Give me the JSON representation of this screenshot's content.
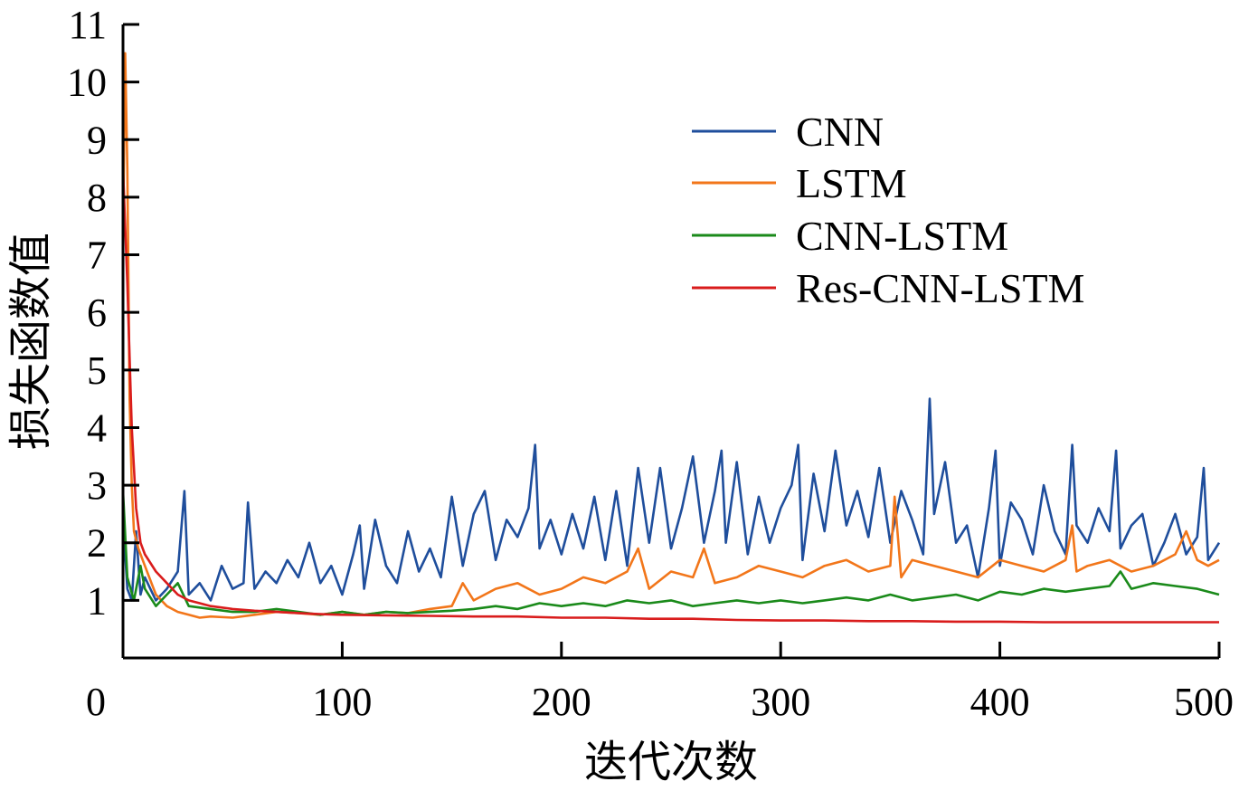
{
  "chart_data": {
    "type": "line",
    "xlabel": "迭代次数",
    "ylabel": "损失函数值",
    "xlim": [
      0,
      500
    ],
    "ylim": [
      0,
      11
    ],
    "x_ticks": [
      0,
      100,
      200,
      300,
      400,
      500
    ],
    "y_ticks": [
      1,
      2,
      3,
      4,
      5,
      6,
      7,
      8,
      9,
      10,
      11
    ],
    "legend_position": "top-right",
    "grid": false,
    "series": [
      {
        "name": "CNN",
        "color": "#1f4e9c",
        "x": [
          0,
          2,
          4,
          6,
          8,
          10,
          15,
          20,
          25,
          28,
          30,
          35,
          40,
          45,
          50,
          55,
          57,
          60,
          65,
          70,
          75,
          80,
          85,
          90,
          95,
          100,
          105,
          108,
          110,
          115,
          120,
          125,
          130,
          135,
          140,
          145,
          150,
          155,
          160,
          165,
          170,
          175,
          180,
          185,
          188,
          190,
          195,
          200,
          205,
          210,
          215,
          220,
          225,
          230,
          235,
          240,
          245,
          250,
          255,
          260,
          265,
          270,
          273,
          275,
          280,
          285,
          290,
          295,
          300,
          305,
          308,
          310,
          315,
          320,
          325,
          330,
          335,
          340,
          345,
          350,
          355,
          360,
          365,
          368,
          370,
          375,
          380,
          385,
          390,
          395,
          398,
          400,
          405,
          410,
          415,
          420,
          425,
          430,
          433,
          435,
          440,
          445,
          450,
          453,
          455,
          460,
          465,
          470,
          475,
          480,
          485,
          490,
          493,
          495,
          500
        ],
        "values": [
          2.4,
          1.2,
          1.0,
          2.2,
          1.1,
          1.4,
          1.0,
          1.2,
          1.5,
          2.9,
          1.1,
          1.3,
          1.0,
          1.6,
          1.2,
          1.3,
          2.7,
          1.2,
          1.5,
          1.3,
          1.7,
          1.4,
          2.0,
          1.3,
          1.6,
          1.1,
          1.8,
          2.3,
          1.2,
          2.4,
          1.6,
          1.3,
          2.2,
          1.5,
          1.9,
          1.4,
          2.8,
          1.6,
          2.5,
          2.9,
          1.7,
          2.4,
          2.1,
          2.6,
          3.7,
          1.9,
          2.4,
          1.8,
          2.5,
          1.9,
          2.8,
          1.7,
          2.9,
          1.6,
          3.3,
          2.0,
          3.3,
          1.9,
          2.6,
          3.5,
          2.0,
          2.9,
          3.6,
          2.0,
          3.4,
          1.8,
          2.8,
          2.0,
          2.6,
          3.0,
          3.7,
          1.7,
          3.2,
          2.2,
          3.6,
          2.3,
          2.9,
          2.1,
          3.3,
          2.0,
          2.9,
          2.4,
          1.8,
          4.5,
          2.5,
          3.4,
          2.0,
          2.3,
          1.4,
          2.6,
          3.6,
          1.6,
          2.7,
          2.4,
          1.8,
          3.0,
          2.2,
          1.8,
          3.7,
          2.3,
          2.0,
          2.6,
          2.2,
          3.6,
          1.9,
          2.3,
          2.5,
          1.6,
          2.0,
          2.5,
          1.8,
          2.1,
          3.3,
          1.7,
          2.0
        ]
      },
      {
        "name": "LSTM",
        "color": "#f2761a",
        "x": [
          0,
          1,
          2,
          3,
          4,
          5,
          7,
          10,
          13,
          15,
          20,
          25,
          30,
          35,
          40,
          50,
          60,
          70,
          80,
          90,
          100,
          110,
          120,
          130,
          140,
          150,
          155,
          160,
          170,
          180,
          190,
          200,
          210,
          220,
          230,
          235,
          240,
          250,
          260,
          265,
          270,
          280,
          290,
          300,
          310,
          320,
          330,
          340,
          350,
          352,
          355,
          360,
          370,
          380,
          390,
          400,
          410,
          420,
          430,
          433,
          435,
          440,
          450,
          460,
          470,
          480,
          485,
          490,
          495,
          500
        ],
        "values": [
          7.3,
          10.5,
          8.5,
          4.5,
          3.0,
          2.2,
          1.9,
          1.6,
          1.3,
          1.1,
          0.9,
          0.8,
          0.75,
          0.7,
          0.72,
          0.7,
          0.75,
          0.8,
          0.78,
          0.75,
          0.8,
          0.75,
          0.8,
          0.78,
          0.85,
          0.9,
          1.3,
          1.0,
          1.2,
          1.3,
          1.1,
          1.2,
          1.4,
          1.3,
          1.5,
          1.9,
          1.2,
          1.5,
          1.4,
          1.9,
          1.3,
          1.4,
          1.6,
          1.5,
          1.4,
          1.6,
          1.7,
          1.5,
          1.6,
          2.8,
          1.4,
          1.7,
          1.6,
          1.5,
          1.4,
          1.7,
          1.6,
          1.5,
          1.7,
          2.3,
          1.5,
          1.6,
          1.7,
          1.5,
          1.6,
          1.8,
          2.2,
          1.7,
          1.6,
          1.7
        ]
      },
      {
        "name": "CNN-LSTM",
        "color": "#1a8a1a",
        "x": [
          0,
          2,
          5,
          8,
          10,
          15,
          20,
          25,
          30,
          40,
          50,
          60,
          70,
          80,
          90,
          100,
          110,
          120,
          130,
          140,
          150,
          160,
          170,
          180,
          190,
          200,
          210,
          220,
          230,
          240,
          250,
          260,
          270,
          280,
          290,
          300,
          310,
          320,
          330,
          340,
          350,
          360,
          370,
          380,
          390,
          400,
          410,
          420,
          430,
          440,
          450,
          455,
          460,
          470,
          480,
          490,
          500
        ],
        "values": [
          2.9,
          1.4,
          1.0,
          1.6,
          1.2,
          0.9,
          1.1,
          1.3,
          0.9,
          0.85,
          0.8,
          0.8,
          0.85,
          0.8,
          0.75,
          0.8,
          0.75,
          0.8,
          0.78,
          0.8,
          0.82,
          0.85,
          0.9,
          0.85,
          0.95,
          0.9,
          0.95,
          0.9,
          1.0,
          0.95,
          1.0,
          0.9,
          0.95,
          1.0,
          0.95,
          1.0,
          0.95,
          1.0,
          1.05,
          1.0,
          1.1,
          1.0,
          1.05,
          1.1,
          1.0,
          1.15,
          1.1,
          1.2,
          1.15,
          1.2,
          1.25,
          1.5,
          1.2,
          1.3,
          1.25,
          1.2,
          1.1
        ]
      },
      {
        "name": "Res-CNN-LSTM",
        "color": "#d91c1c",
        "x": [
          0,
          2,
          4,
          6,
          8,
          10,
          15,
          20,
          25,
          30,
          35,
          40,
          50,
          60,
          70,
          80,
          90,
          100,
          120,
          140,
          160,
          180,
          200,
          220,
          240,
          260,
          280,
          300,
          320,
          340,
          360,
          380,
          400,
          420,
          440,
          460,
          480,
          490,
          500
        ],
        "values": [
          8.5,
          6.5,
          4.0,
          2.6,
          2.0,
          1.8,
          1.5,
          1.3,
          1.1,
          1.0,
          0.95,
          0.9,
          0.85,
          0.82,
          0.8,
          0.78,
          0.76,
          0.75,
          0.74,
          0.73,
          0.72,
          0.72,
          0.7,
          0.7,
          0.68,
          0.68,
          0.66,
          0.65,
          0.65,
          0.64,
          0.64,
          0.63,
          0.63,
          0.62,
          0.62,
          0.62,
          0.62,
          0.62,
          0.62
        ]
      }
    ]
  }
}
